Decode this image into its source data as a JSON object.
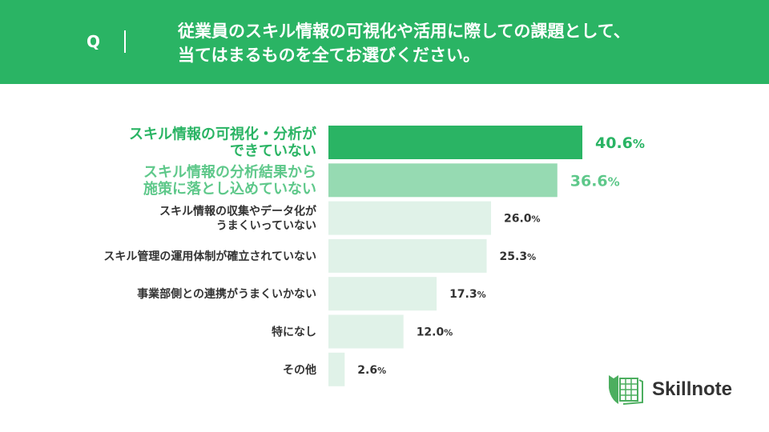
{
  "header": {
    "q_label": "Q",
    "question": "従業員のスキル情報の可視化や活用に際しての課題として、\n当てはまるものを全てお選びください。"
  },
  "colors": {
    "header": "#2ab464",
    "bar_top1": "#2ab464",
    "bar_top2": "#96dab2",
    "bar_other": "#e0f2e8",
    "label_top1": "#2ab464",
    "label_top2": "#5ec88a",
    "label_other": "#333333"
  },
  "chart_data": {
    "type": "bar",
    "orientation": "horizontal",
    "categories": [
      "スキル情報の可視化・分析が\nできていない",
      "スキル情報の分析結果から\n施策に落とし込めていない",
      "スキル情報の収集やデータ化が\nうまくいっていない",
      "スキル管理の運用体制が確立されていない",
      "事業部側との連携がうまくいかない",
      "特になし",
      "その他"
    ],
    "values": [
      40.6,
      36.6,
      26.0,
      25.3,
      17.3,
      12.0,
      2.6
    ],
    "value_labels": [
      "40.6",
      "36.6",
      "26.0",
      "25.3",
      "17.3",
      "12.0",
      "2.6"
    ],
    "unit": "%",
    "xlim": [
      0,
      40.6
    ],
    "grid": false
  },
  "logo": {
    "text": "Skillnote"
  }
}
